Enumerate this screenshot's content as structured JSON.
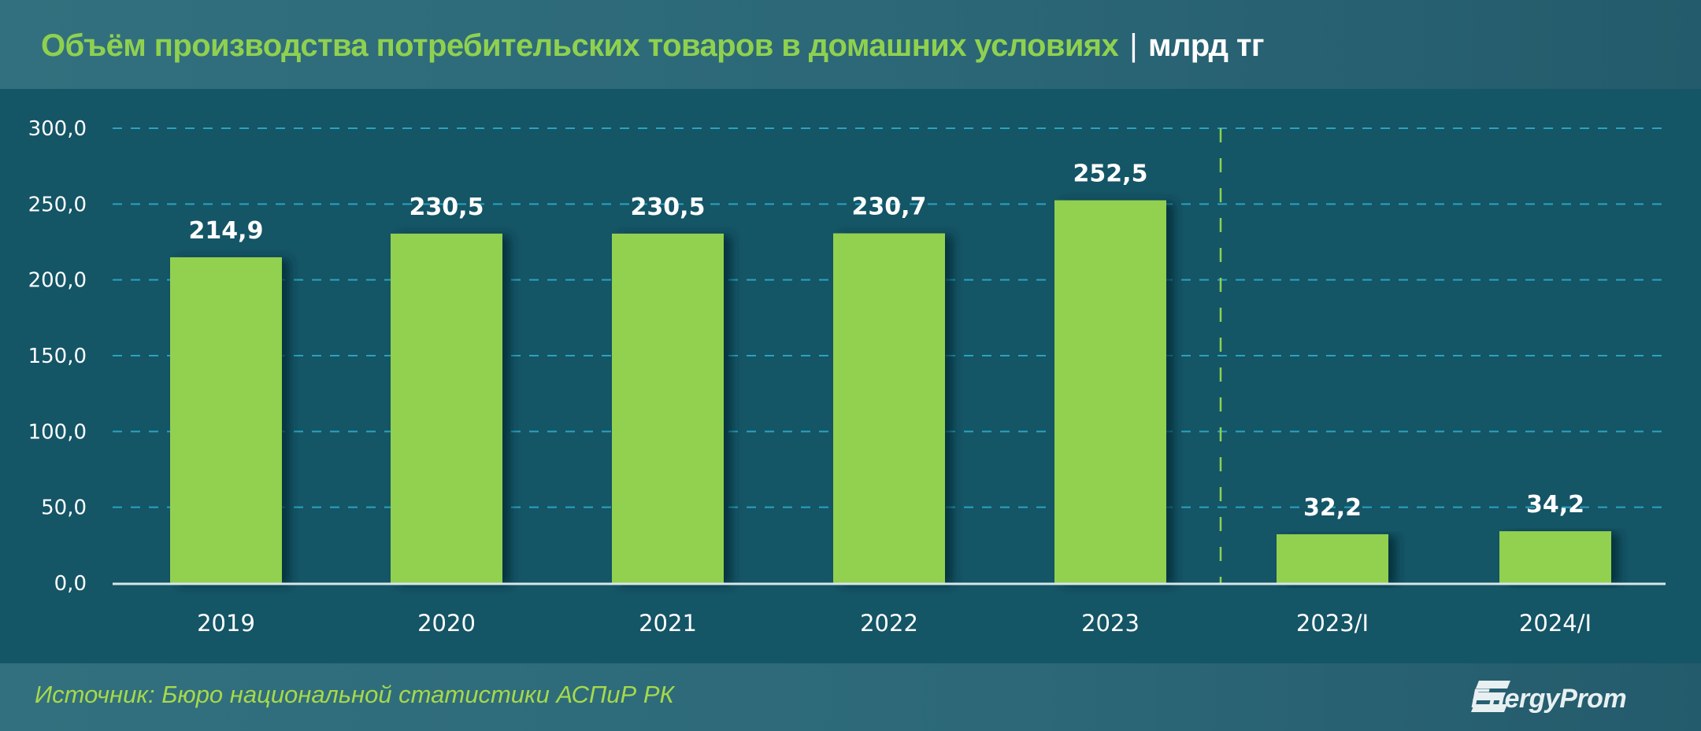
{
  "header": {
    "title": "Объём производства потребительских товаров в домашних условиях",
    "separator": "|",
    "unit": "млрд тг"
  },
  "footer": {
    "source": "Источник: Бюро национальной статистики АСПиР РК",
    "logo_text": "EnergyProm",
    "logo_icon": "energyprom-logo-icon"
  },
  "colors": {
    "bar": "#92d050",
    "background": "#145566",
    "header_bg": "#2f6b7b",
    "title_green": "#8fd14f",
    "gridline": "#2aa3bf",
    "separator_line": "#8fd14f",
    "text": "#ffffff"
  },
  "chart_data": {
    "type": "bar",
    "title": "Объём производства потребительских товаров в домашних условиях | млрд тг",
    "xlabel": "",
    "ylabel": "",
    "categories": [
      "2019",
      "2020",
      "2021",
      "2022",
      "2023",
      "2023/I",
      "2024/I"
    ],
    "values": [
      214.9,
      230.5,
      230.5,
      230.7,
      252.5,
      32.2,
      34.2
    ],
    "value_labels": [
      "214,9",
      "230,5",
      "230,5",
      "230,7",
      "252,5",
      "32,2",
      "34,2"
    ],
    "ylim": [
      0,
      300
    ],
    "yticks": [
      0,
      50,
      100,
      150,
      200,
      250,
      300
    ],
    "ytick_labels": [
      "0,0",
      "50,0",
      "100,0",
      "150,0",
      "200,0",
      "250,0",
      "300,0"
    ],
    "grid": true,
    "grid_style": "dashed horizontal",
    "legend": "none",
    "annotations": [
      "vertical dashed separator between 2023 and 2023/I"
    ]
  }
}
